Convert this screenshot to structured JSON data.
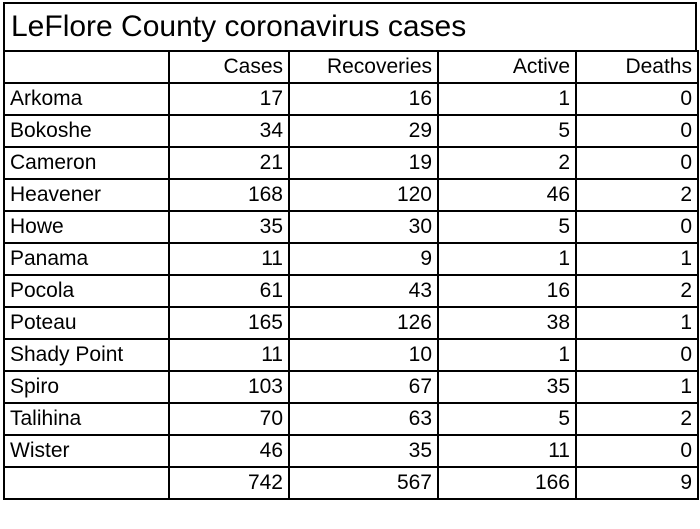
{
  "title": "LeFlore County coronavirus cases",
  "columns": [
    "",
    "Cases",
    "Recoveries",
    "Active",
    "Deaths"
  ],
  "rows": [
    {
      "name": "Arkoma",
      "cases": "17",
      "recoveries": "16",
      "active": "1",
      "deaths": "0"
    },
    {
      "name": "Bokoshe",
      "cases": "34",
      "recoveries": "29",
      "active": "5",
      "deaths": "0"
    },
    {
      "name": "Cameron",
      "cases": "21",
      "recoveries": "19",
      "active": "2",
      "deaths": "0"
    },
    {
      "name": "Heavener",
      "cases": "168",
      "recoveries": "120",
      "active": "46",
      "deaths": "2"
    },
    {
      "name": "Howe",
      "cases": "35",
      "recoveries": "30",
      "active": "5",
      "deaths": "0"
    },
    {
      "name": "Panama",
      "cases": "11",
      "recoveries": "9",
      "active": "1",
      "deaths": "1"
    },
    {
      "name": "Pocola",
      "cases": "61",
      "recoveries": "43",
      "active": "16",
      "deaths": "2"
    },
    {
      "name": "Poteau",
      "cases": "165",
      "recoveries": "126",
      "active": "38",
      "deaths": "1"
    },
    {
      "name": "Shady Point",
      "cases": "11",
      "recoveries": "10",
      "active": "1",
      "deaths": "0"
    },
    {
      "name": "Spiro",
      "cases": "103",
      "recoveries": "67",
      "active": "35",
      "deaths": "1"
    },
    {
      "name": "Talihina",
      "cases": "70",
      "recoveries": "63",
      "active": "5",
      "deaths": "2"
    },
    {
      "name": "Wister",
      "cases": "46",
      "recoveries": "35",
      "active": "11",
      "deaths": "0"
    }
  ],
  "totals": {
    "name": "",
    "cases": "742",
    "recoveries": "567",
    "active": "166",
    "deaths": "9"
  }
}
